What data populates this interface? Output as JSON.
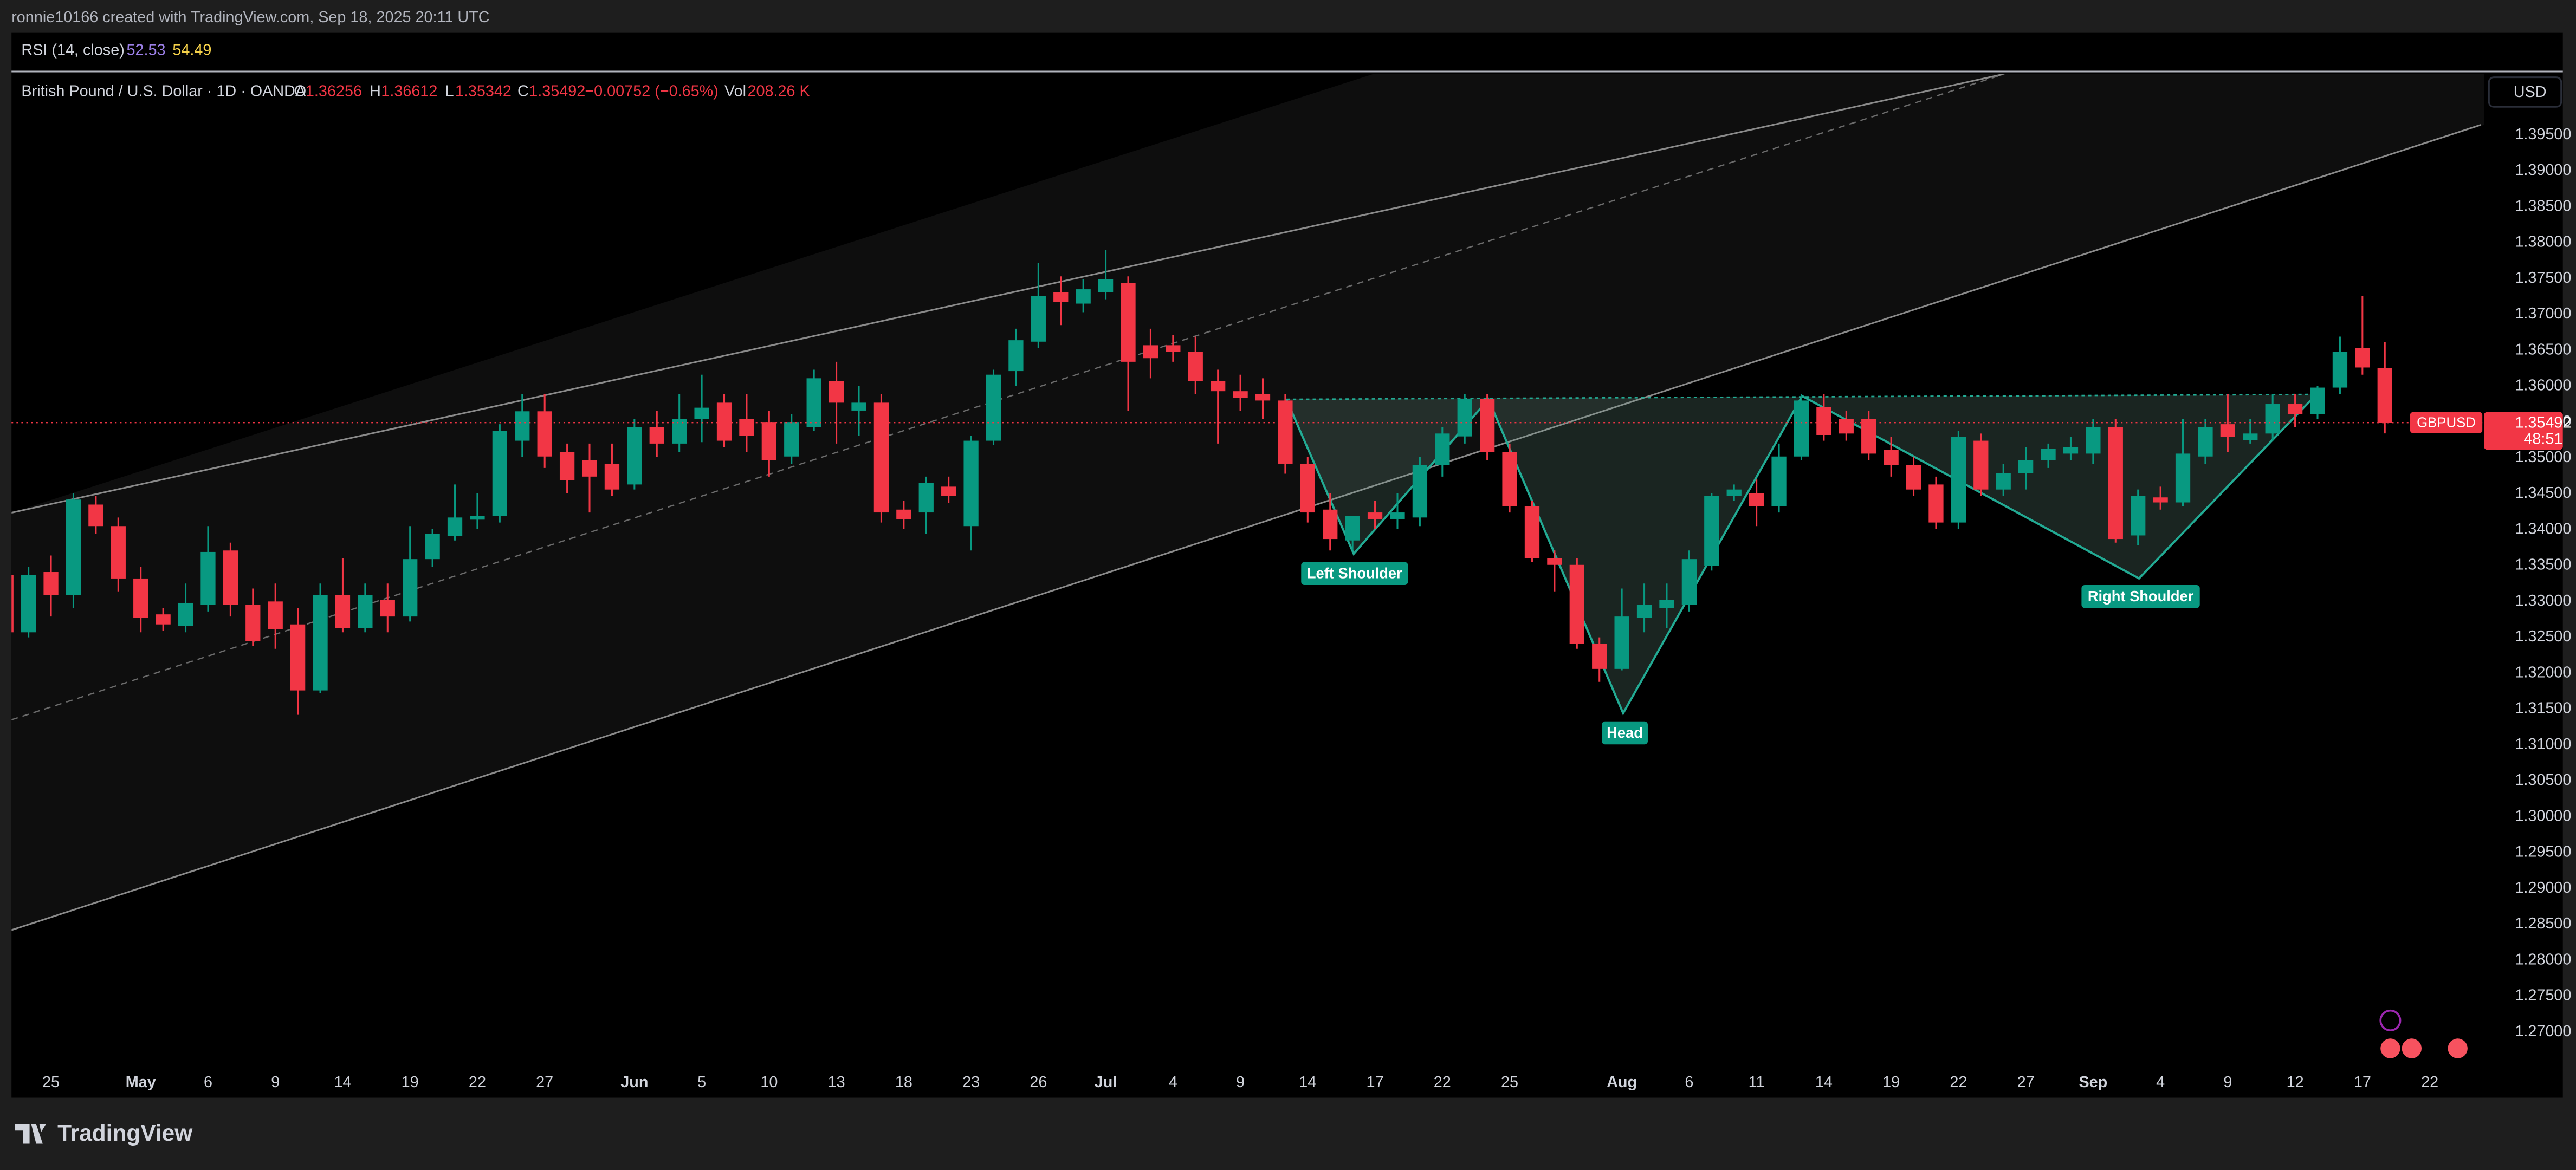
{
  "header": {
    "credit": "ronnie10166 created with TradingView.com, Sep 18, 2025 20:11 UTC"
  },
  "indicator": {
    "name": "RSI (14, close)",
    "values": [
      52.53,
      54.49
    ]
  },
  "legend": {
    "symbol": "British Pound / U.S. Dollar · 1D · OANDA",
    "labels": [
      "O",
      "H",
      "L",
      "C"
    ],
    "change": "−0.00752 (−0.65%)",
    "volume_label": "Vol",
    "volume": "208.26 K"
  },
  "currency": "USD",
  "brand": "TradingView",
  "annotations": [
    "Left Shoulder",
    "Head",
    "Right Shoulder"
  ],
  "chart_data": {
    "type": "candlestick",
    "up_color": "#089981",
    "down_color": "#f23645",
    "grid": false,
    "ylim": [
      1.26084,
      1.40351
    ],
    "yticks": [
      {
        "value": 1.27,
        "label": "1.27000"
      },
      {
        "value": 1.275,
        "label": "1.27500"
      },
      {
        "value": 1.28,
        "label": "1.28000"
      },
      {
        "value": 1.285,
        "label": "1.28500"
      },
      {
        "value": 1.29,
        "label": "1.29000"
      },
      {
        "value": 1.295,
        "label": "1.29500"
      },
      {
        "value": 1.3,
        "label": "1.30000"
      },
      {
        "value": 1.305,
        "label": "1.30500"
      },
      {
        "value": 1.31,
        "label": "1.31000"
      },
      {
        "value": 1.315,
        "label": "1.31500"
      },
      {
        "value": 1.32,
        "label": "1.32000"
      },
      {
        "value": 1.325,
        "label": "1.32500"
      },
      {
        "value": 1.33,
        "label": "1.33000"
      },
      {
        "value": 1.335,
        "label": "1.33500"
      },
      {
        "value": 1.34,
        "label": "1.34000"
      },
      {
        "value": 1.345,
        "label": "1.34500"
      },
      {
        "value": 1.35,
        "label": "1.35000"
      },
      {
        "value": 1.355,
        "label": "1.35500"
      },
      {
        "value": 1.36,
        "label": "1.36000"
      },
      {
        "value": 1.365,
        "label": "1.36500"
      },
      {
        "value": 1.37,
        "label": "1.37000"
      },
      {
        "value": 1.375,
        "label": "1.37500"
      },
      {
        "value": 1.38,
        "label": "1.38000"
      },
      {
        "value": 1.385,
        "label": "1.38500"
      },
      {
        "value": 1.39,
        "label": "1.39000"
      },
      {
        "value": 1.395,
        "label": "1.39500"
      }
    ],
    "categories": [
      null,
      null,
      "25",
      null,
      null,
      null,
      "May",
      null,
      null,
      "6",
      null,
      null,
      "9",
      null,
      null,
      "14",
      null,
      null,
      "19",
      null,
      null,
      "22",
      null,
      null,
      "27",
      null,
      null,
      null,
      "Jun",
      null,
      null,
      "5",
      null,
      null,
      "10",
      null,
      null,
      "13",
      null,
      null,
      "18",
      null,
      null,
      "23",
      null,
      null,
      "26",
      null,
      null,
      "Jul",
      null,
      null,
      "4",
      null,
      null,
      "9",
      null,
      null,
      "14",
      null,
      null,
      "17",
      null,
      null,
      "22",
      null,
      null,
      "25",
      null,
      null,
      null,
      null,
      "Aug",
      null,
      null,
      "6",
      null,
      null,
      "11",
      null,
      null,
      "14",
      null,
      null,
      "19",
      null,
      null,
      "22",
      null,
      null,
      "27",
      null,
      null,
      "Sep",
      null,
      null,
      "4",
      null,
      null,
      "9",
      null,
      null,
      "12",
      null,
      null,
      "17",
      null,
      null,
      "22"
    ],
    "open": [
      1.3337,
      1.3257,
      1.3341,
      1.3309,
      1.3435,
      1.3405,
      1.3332,
      1.3282,
      1.3266,
      1.3295,
      1.3371,
      1.3295,
      1.33,
      1.3268,
      1.3176,
      1.3309,
      1.3263,
      1.3302,
      1.3279,
      1.3359,
      1.3391,
      1.3414,
      1.3419,
      1.3524,
      1.3565,
      1.3508,
      1.3497,
      1.3492,
      1.3463,
      1.3543,
      1.352,
      1.3554,
      1.3577,
      1.3554,
      1.355,
      1.3502,
      1.3543,
      1.3607,
      1.3566,
      1.3577,
      1.3428,
      1.3424,
      1.346,
      1.3405,
      1.3524,
      1.3621,
      1.3662,
      1.3731,
      1.3715,
      1.3731,
      1.3744,
      1.3657,
      1.3657,
      1.3648,
      1.3607,
      1.3593,
      1.3589,
      1.358,
      1.3492,
      1.3428,
      1.3385,
      1.3424,
      1.3415,
      1.3417,
      1.349,
      1.353,
      1.3582,
      1.3508,
      1.3433,
      1.336,
      1.3351,
      1.3241,
      1.3206,
      1.3277,
      1.3291,
      1.3295,
      1.335,
      1.3447,
      1.3451,
      1.3433,
      1.3502,
      1.3571,
      1.3554,
      1.3554,
      1.3511,
      1.349,
      1.3463,
      1.341,
      1.3524,
      1.3456,
      1.3479,
      1.3497,
      1.3506,
      1.3506,
      1.3543,
      1.3392,
      1.3445,
      1.3438,
      1.3502,
      1.3547,
      1.3525,
      1.3534,
      1.3575,
      1.3561,
      1.3598,
      1.3653,
      1.36256,
      null,
      null
    ],
    "high": [
      1.3348,
      1.3348,
      1.3364,
      1.3451,
      1.3447,
      1.3417,
      1.3348,
      1.3291,
      1.3325,
      1.3405,
      1.3382,
      1.3318,
      1.3325,
      1.3291,
      1.3325,
      1.336,
      1.3325,
      1.3325,
      1.3405,
      1.3401,
      1.3463,
      1.3451,
      1.3547,
      1.3589,
      1.3589,
      1.352,
      1.352,
      1.352,
      1.3554,
      1.3566,
      1.3589,
      1.3616,
      1.3589,
      1.3589,
      1.3566,
      1.3561,
      1.3623,
      1.3634,
      1.36,
      1.3589,
      1.344,
      1.3474,
      1.3474,
      1.3531,
      1.3623,
      1.368,
      1.3772,
      1.3753,
      1.3749,
      1.379,
      1.3753,
      1.368,
      1.3671,
      1.3669,
      1.3623,
      1.3616,
      1.3611,
      1.3589,
      1.3501,
      1.3451,
      1.3417,
      1.344,
      1.3451,
      1.3501,
      1.3543,
      1.3589,
      1.3589,
      1.352,
      1.344,
      1.3371,
      1.336,
      1.325,
      1.3318,
      1.3325,
      1.3325,
      1.3371,
      1.3451,
      1.3463,
      1.347,
      1.352,
      1.3589,
      1.3589,
      1.3566,
      1.3566,
      1.3529,
      1.3502,
      1.3474,
      1.3538,
      1.3534,
      1.3492,
      1.3515,
      1.352,
      1.3529,
      1.3554,
      1.3554,
      1.3456,
      1.346,
      1.3554,
      1.3554,
      1.3589,
      1.3554,
      1.3589,
      1.3589,
      1.36,
      1.3669,
      1.3726,
      1.36612,
      null,
      null
    ],
    "low": [
      1.3245,
      1.325,
      1.3279,
      1.3291,
      1.3394,
      1.3314,
      1.3257,
      1.3259,
      1.3257,
      1.3286,
      1.3279,
      1.3238,
      1.3234,
      1.3142,
      1.3172,
      1.3257,
      1.3257,
      1.3257,
      1.3272,
      1.3348,
      1.3385,
      1.3401,
      1.341,
      1.3501,
      1.3486,
      1.3451,
      1.3424,
      1.3447,
      1.3456,
      1.3501,
      1.3508,
      1.3522,
      1.3515,
      1.3508,
      1.3474,
      1.3492,
      1.3538,
      1.352,
      1.3531,
      1.341,
      1.3401,
      1.3394,
      1.3437,
      1.3371,
      1.3518,
      1.36,
      1.3653,
      1.3685,
      1.3703,
      1.3721,
      1.3566,
      1.3611,
      1.3634,
      1.3589,
      1.352,
      1.3566,
      1.3554,
      1.3478,
      1.341,
      1.3371,
      1.3371,
      1.3401,
      1.3401,
      1.3405,
      1.3474,
      1.352,
      1.3497,
      1.3424,
      1.3355,
      1.3314,
      1.3234,
      1.3188,
      1.3204,
      1.3257,
      1.3263,
      1.3286,
      1.3343,
      1.344,
      1.3405,
      1.3424,
      1.3497,
      1.3524,
      1.3524,
      1.3497,
      1.3474,
      1.3447,
      1.3401,
      1.3401,
      1.3447,
      1.3447,
      1.3456,
      1.3486,
      1.3497,
      1.3492,
      1.3382,
      1.3378,
      1.3428,
      1.3433,
      1.3492,
      1.3508,
      1.352,
      1.3524,
      1.3543,
      1.3554,
      1.3589,
      1.3616,
      1.35342,
      null,
      null
    ],
    "close": [
      1.3257,
      1.3337,
      1.3309,
      1.3442,
      1.3405,
      1.3332,
      1.3277,
      1.3268,
      1.3298,
      1.3369,
      1.3295,
      1.3245,
      1.3261,
      1.3176,
      1.3309,
      1.3263,
      1.3309,
      1.3279,
      1.3359,
      1.3394,
      1.3417,
      1.3419,
      1.3538,
      1.3565,
      1.3502,
      1.3469,
      1.3474,
      1.3456,
      1.3543,
      1.352,
      1.3554,
      1.357,
      1.3524,
      1.3531,
      1.3497,
      1.355,
      1.3611,
      1.3577,
      1.3577,
      1.3424,
      1.3415,
      1.3465,
      1.3447,
      1.3524,
      1.3616,
      1.3664,
      1.3726,
      1.3717,
      1.3735,
      1.3749,
      1.3634,
      1.3639,
      1.3648,
      1.3607,
      1.3593,
      1.3584,
      1.358,
      1.3492,
      1.3424,
      1.3387,
      1.3419,
      1.3415,
      1.3424,
      1.349,
      1.3534,
      1.3582,
      1.3508,
      1.3433,
      1.336,
      1.3351,
      1.3241,
      1.3206,
      1.3279,
      1.3295,
      1.3302,
      1.3359,
      1.3447,
      1.3456,
      1.3433,
      1.3502,
      1.358,
      1.3532,
      1.3534,
      1.3506,
      1.349,
      1.3456,
      1.341,
      1.3529,
      1.3456,
      1.3479,
      1.3497,
      1.3513,
      1.3515,
      1.3543,
      1.3387,
      1.3447,
      1.3438,
      1.3506,
      1.3543,
      1.3529,
      1.3534,
      1.3575,
      1.3561,
      1.3598,
      1.3648,
      1.3626,
      1.35492,
      null,
      null
    ],
    "price_tag": {
      "symbol": "GBPUSD",
      "countdown": "48:51"
    }
  }
}
